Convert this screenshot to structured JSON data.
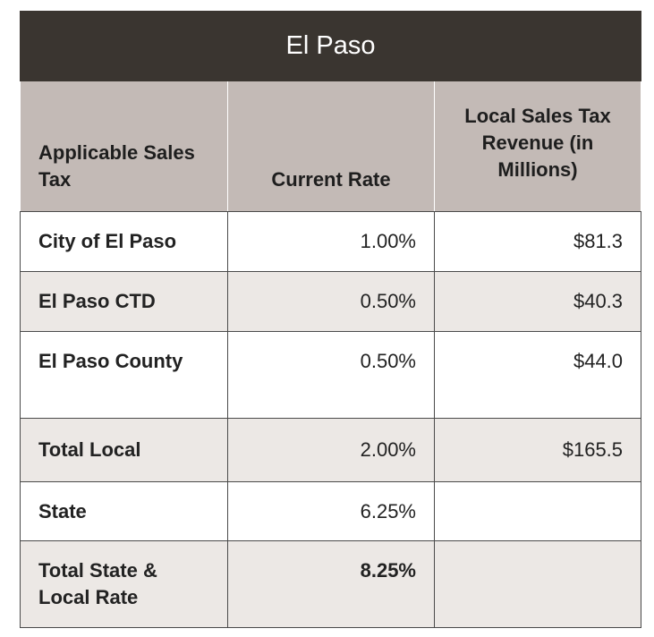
{
  "title": "El Paso",
  "headers": {
    "applicable": "Applicable Sales Tax",
    "rate": "Current Rate",
    "revenue": "Local Sales Tax Revenue (in Millions)"
  },
  "rows": [
    {
      "label": "City of El Paso",
      "rate": "1.00%",
      "revenue": "$81.3"
    },
    {
      "label": "El Paso CTD",
      "rate": "0.50%",
      "revenue": "$40.3"
    },
    {
      "label": "El Paso County",
      "rate": "0.50%",
      "revenue": "$44.0"
    },
    {
      "label": "Total Local",
      "rate": "2.00%",
      "revenue": "$165.5"
    },
    {
      "label": "State",
      "rate": "6.25%",
      "revenue": ""
    },
    {
      "label": "Total State & Local Rate",
      "rate": "8.25%",
      "revenue": ""
    }
  ]
}
